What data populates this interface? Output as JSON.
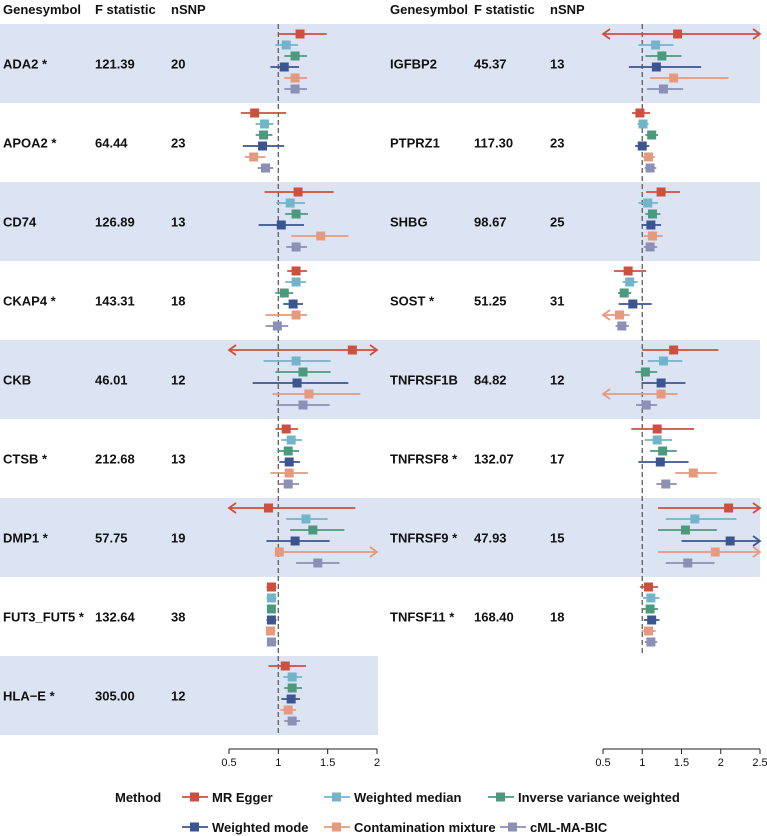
{
  "chart_data": {
    "type": "forest",
    "title": "",
    "headers": {
      "gene": "Genesymbol",
      "fstat": "F statistic",
      "nsnp": "nSNP"
    },
    "reference_line": 1,
    "axes": {
      "left": {
        "range": [
          0.5,
          2.0
        ],
        "ticks": [
          "0.5",
          "1",
          "1.5",
          "2"
        ],
        "tick_values": [
          0.5,
          1,
          1.5,
          2
        ]
      },
      "right": {
        "range": [
          0.5,
          2.5
        ],
        "ticks": [
          "0.5",
          "1",
          "1.5",
          "2",
          "2.5"
        ],
        "tick_values": [
          0.5,
          1,
          1.5,
          2,
          2.5
        ]
      }
    },
    "legend": {
      "title": "Method",
      "position": "bottom",
      "methods": [
        {
          "name": "MR Egger",
          "color": "#cf4f3e"
        },
        {
          "name": "Weighted median",
          "color": "#72b4ca"
        },
        {
          "name": "Inverse variance weighted",
          "color": "#4c9a7e"
        },
        {
          "name": "Weighted mode",
          "color": "#3b5590"
        },
        {
          "name": "Contamination mixture",
          "color": "#e59a7f"
        },
        {
          "name": "cML-MA-BIC",
          "color": "#8c8fb6"
        }
      ]
    },
    "colors": {
      "band": "#dce4f3"
    },
    "panels": [
      {
        "axis": "left",
        "rows": [
          {
            "gene": "ADA2 *",
            "fstat": "121.39",
            "nsnp": "20",
            "shaded": true,
            "estimates": [
              {
                "est": 1.22,
                "lo": 1.0,
                "hi": 1.49
              },
              {
                "est": 1.08,
                "lo": 0.97,
                "hi": 1.2
              },
              {
                "est": 1.17,
                "lo": 1.06,
                "hi": 1.29
              },
              {
                "est": 1.06,
                "lo": 0.92,
                "hi": 1.21
              },
              {
                "est": 1.17,
                "lo": 1.06,
                "hi": 1.29
              },
              {
                "est": 1.17,
                "lo": 1.06,
                "hi": 1.29
              }
            ]
          },
          {
            "gene": "APOA2 *",
            "fstat": "64.44",
            "nsnp": "23",
            "shaded": false,
            "estimates": [
              {
                "est": 0.76,
                "lo": 0.62,
                "hi": 1.08
              },
              {
                "est": 0.86,
                "lo": 0.77,
                "hi": 0.95
              },
              {
                "est": 0.85,
                "lo": 0.77,
                "hi": 0.94
              },
              {
                "est": 0.84,
                "lo": 0.64,
                "hi": 1.06
              },
              {
                "est": 0.75,
                "lo": 0.66,
                "hi": 0.87
              },
              {
                "est": 0.87,
                "lo": 0.79,
                "hi": 0.95
              }
            ]
          },
          {
            "gene": "CD74",
            "fstat": "126.89",
            "nsnp": "13",
            "shaded": true,
            "estimates": [
              {
                "est": 1.2,
                "lo": 0.86,
                "hi": 1.56
              },
              {
                "est": 1.12,
                "lo": 0.98,
                "hi": 1.27
              },
              {
                "est": 1.18,
                "lo": 1.07,
                "hi": 1.3
              },
              {
                "est": 1.03,
                "lo": 0.8,
                "hi": 1.26
              },
              {
                "est": 1.43,
                "lo": 1.13,
                "hi": 1.71
              },
              {
                "est": 1.18,
                "lo": 1.08,
                "hi": 1.29
              }
            ]
          },
          {
            "gene": "CKAP4 *",
            "fstat": "143.31",
            "nsnp": "18",
            "shaded": false,
            "estimates": [
              {
                "est": 1.18,
                "lo": 1.09,
                "hi": 1.29
              },
              {
                "est": 1.18,
                "lo": 1.07,
                "hi": 1.28
              },
              {
                "est": 1.06,
                "lo": 0.97,
                "hi": 1.15
              },
              {
                "est": 1.15,
                "lo": 1.05,
                "hi": 1.25
              },
              {
                "est": 1.18,
                "lo": 0.87,
                "hi": 1.29
              },
              {
                "est": 0.99,
                "lo": 0.87,
                "hi": 1.1
              }
            ]
          },
          {
            "gene": "CKB",
            "fstat": "46.01",
            "nsnp": "12",
            "shaded": true,
            "estimates": [
              {
                "est": 1.75,
                "lo": 0.5,
                "hi": 2.0,
                "arrowLo": true,
                "arrowHi": true
              },
              {
                "est": 1.18,
                "lo": 0.85,
                "hi": 1.53
              },
              {
                "est": 1.25,
                "lo": 0.97,
                "hi": 1.53
              },
              {
                "est": 1.19,
                "lo": 0.74,
                "hi": 1.71
              },
              {
                "est": 1.31,
                "lo": 0.94,
                "hi": 1.83
              },
              {
                "est": 1.25,
                "lo": 0.98,
                "hi": 1.52
              }
            ]
          },
          {
            "gene": "CTSB *",
            "fstat": "212.68",
            "nsnp": "13",
            "shaded": false,
            "estimates": [
              {
                "est": 1.08,
                "lo": 0.97,
                "hi": 1.2
              },
              {
                "est": 1.13,
                "lo": 1.03,
                "hi": 1.24
              },
              {
                "est": 1.1,
                "lo": 0.99,
                "hi": 1.21
              },
              {
                "est": 1.11,
                "lo": 1.01,
                "hi": 1.22
              },
              {
                "est": 1.11,
                "lo": 0.92,
                "hi": 1.3
              },
              {
                "est": 1.1,
                "lo": 1.0,
                "hi": 1.21
              }
            ]
          },
          {
            "gene": "DMP1 *",
            "fstat": "57.75",
            "nsnp": "19",
            "shaded": true,
            "estimates": [
              {
                "est": 0.9,
                "lo": 0.5,
                "hi": 1.78,
                "arrowLo": true
              },
              {
                "est": 1.28,
                "lo": 1.08,
                "hi": 1.5
              },
              {
                "est": 1.35,
                "lo": 1.12,
                "hi": 1.67
              },
              {
                "est": 1.17,
                "lo": 0.88,
                "hi": 1.52
              },
              {
                "est": 1.01,
                "lo": 1.01,
                "hi": 2.0,
                "arrowHi": true
              },
              {
                "est": 1.4,
                "lo": 1.18,
                "hi": 1.62
              }
            ]
          },
          {
            "gene": "FUT3_FUT5 *",
            "fstat": "132.64",
            "nsnp": "38",
            "shaded": false,
            "estimates": [
              {
                "est": 0.93,
                "lo": 0.88,
                "hi": 0.98
              },
              {
                "est": 0.93,
                "lo": 0.88,
                "hi": 0.98
              },
              {
                "est": 0.93,
                "lo": 0.89,
                "hi": 0.97
              },
              {
                "est": 0.93,
                "lo": 0.88,
                "hi": 0.98
              },
              {
                "est": 0.92,
                "lo": 0.88,
                "hi": 0.97
              },
              {
                "est": 0.93,
                "lo": 0.89,
                "hi": 0.98
              }
            ]
          },
          {
            "gene": "HLA−E *",
            "fstat": "305.00",
            "nsnp": "12",
            "shaded": true,
            "estimates": [
              {
                "est": 1.07,
                "lo": 0.9,
                "hi": 1.28
              },
              {
                "est": 1.14,
                "lo": 1.05,
                "hi": 1.24
              },
              {
                "est": 1.14,
                "lo": 1.06,
                "hi": 1.24
              },
              {
                "est": 1.13,
                "lo": 1.03,
                "hi": 1.22
              },
              {
                "est": 1.1,
                "lo": 1.02,
                "hi": 1.18
              },
              {
                "est": 1.14,
                "lo": 1.06,
                "hi": 1.22
              }
            ]
          }
        ]
      },
      {
        "axis": "right",
        "rows": [
          {
            "gene": "IGFBP2",
            "fstat": "45.37",
            "nsnp": "13",
            "shaded": true,
            "estimates": [
              {
                "est": 1.45,
                "lo": 0.5,
                "hi": 2.5,
                "arrowLo": true,
                "arrowHi": true
              },
              {
                "est": 1.17,
                "lo": 0.95,
                "hi": 1.4
              },
              {
                "est": 1.25,
                "lo": 1.04,
                "hi": 1.5
              },
              {
                "est": 1.18,
                "lo": 0.83,
                "hi": 1.75
              },
              {
                "est": 1.4,
                "lo": 1.1,
                "hi": 2.1
              },
              {
                "est": 1.27,
                "lo": 1.06,
                "hi": 1.52
              }
            ]
          },
          {
            "gene": "PTPRZ1",
            "fstat": "117.30",
            "nsnp": "23",
            "shaded": false,
            "estimates": [
              {
                "est": 0.97,
                "lo": 0.87,
                "hi": 1.1
              },
              {
                "est": 1.01,
                "lo": 0.94,
                "hi": 1.08
              },
              {
                "est": 1.12,
                "lo": 1.04,
                "hi": 1.2
              },
              {
                "est": 1.0,
                "lo": 0.91,
                "hi": 1.09
              },
              {
                "est": 1.08,
                "lo": 1.0,
                "hi": 1.16
              },
              {
                "est": 1.1,
                "lo": 1.03,
                "hi": 1.18
              }
            ]
          },
          {
            "gene": "SHBG",
            "fstat": "98.67",
            "nsnp": "25",
            "shaded": true,
            "estimates": [
              {
                "est": 1.24,
                "lo": 1.05,
                "hi": 1.48
              },
              {
                "est": 1.07,
                "lo": 0.95,
                "hi": 1.2
              },
              {
                "est": 1.13,
                "lo": 1.04,
                "hi": 1.23
              },
              {
                "est": 1.11,
                "lo": 0.99,
                "hi": 1.24
              },
              {
                "est": 1.13,
                "lo": 1.02,
                "hi": 1.26
              },
              {
                "est": 1.1,
                "lo": 1.02,
                "hi": 1.19
              }
            ]
          },
          {
            "gene": "SOST *",
            "fstat": "51.25",
            "nsnp": "31",
            "shaded": false,
            "estimates": [
              {
                "est": 0.82,
                "lo": 0.64,
                "hi": 1.05
              },
              {
                "est": 0.84,
                "lo": 0.75,
                "hi": 0.94
              },
              {
                "est": 0.77,
                "lo": 0.69,
                "hi": 0.86
              },
              {
                "est": 0.88,
                "lo": 0.7,
                "hi": 1.12
              },
              {
                "est": 0.71,
                "lo": 0.5,
                "hi": 0.84,
                "arrowLo": true
              },
              {
                "est": 0.74,
                "lo": 0.66,
                "hi": 0.83
              }
            ]
          },
          {
            "gene": "TNFRSF1B",
            "fstat": "84.82",
            "nsnp": "12",
            "shaded": true,
            "estimates": [
              {
                "est": 1.4,
                "lo": 1.0,
                "hi": 1.97
              },
              {
                "est": 1.27,
                "lo": 1.07,
                "hi": 1.51
              },
              {
                "est": 1.04,
                "lo": 0.91,
                "hi": 1.19
              },
              {
                "est": 1.24,
                "lo": 0.99,
                "hi": 1.55
              },
              {
                "est": 1.24,
                "lo": 0.5,
                "hi": 1.45,
                "arrowLo": true
              },
              {
                "est": 1.05,
                "lo": 0.92,
                "hi": 1.19
              }
            ]
          },
          {
            "gene": "TNFRSF8 *",
            "fstat": "132.07",
            "nsnp": "17",
            "shaded": false,
            "estimates": [
              {
                "est": 1.19,
                "lo": 0.86,
                "hi": 1.66
              },
              {
                "est": 1.19,
                "lo": 1.03,
                "hi": 1.38
              },
              {
                "est": 1.26,
                "lo": 1.1,
                "hi": 1.44
              },
              {
                "est": 1.23,
                "lo": 0.95,
                "hi": 1.59
              },
              {
                "est": 1.65,
                "lo": 1.42,
                "hi": 1.95
              },
              {
                "est": 1.3,
                "lo": 1.18,
                "hi": 1.44
              }
            ]
          },
          {
            "gene": "TNFRSF9 *",
            "fstat": "47.93",
            "nsnp": "15",
            "shaded": true,
            "estimates": [
              {
                "est": 2.1,
                "lo": 1.2,
                "hi": 2.5,
                "arrowHi": true
              },
              {
                "est": 1.67,
                "lo": 1.3,
                "hi": 2.2
              },
              {
                "est": 1.55,
                "lo": 1.2,
                "hi": 1.95
              },
              {
                "est": 2.12,
                "lo": 1.5,
                "hi": 2.5,
                "arrowHi": true
              },
              {
                "est": 1.93,
                "lo": 1.2,
                "hi": 2.5,
                "arrowHi": true
              },
              {
                "est": 1.58,
                "lo": 1.3,
                "hi": 1.92
              }
            ]
          },
          {
            "gene": "TNFSF11 *",
            "fstat": "168.40",
            "nsnp": "18",
            "shaded": false,
            "estimates": [
              {
                "est": 1.08,
                "lo": 0.97,
                "hi": 1.2
              },
              {
                "est": 1.11,
                "lo": 1.01,
                "hi": 1.22
              },
              {
                "est": 1.1,
                "lo": 1.01,
                "hi": 1.2
              },
              {
                "est": 1.12,
                "lo": 1.02,
                "hi": 1.22
              },
              {
                "est": 1.08,
                "lo": 0.99,
                "hi": 1.17
              },
              {
                "est": 1.11,
                "lo": 1.03,
                "hi": 1.19
              }
            ]
          }
        ]
      }
    ]
  }
}
